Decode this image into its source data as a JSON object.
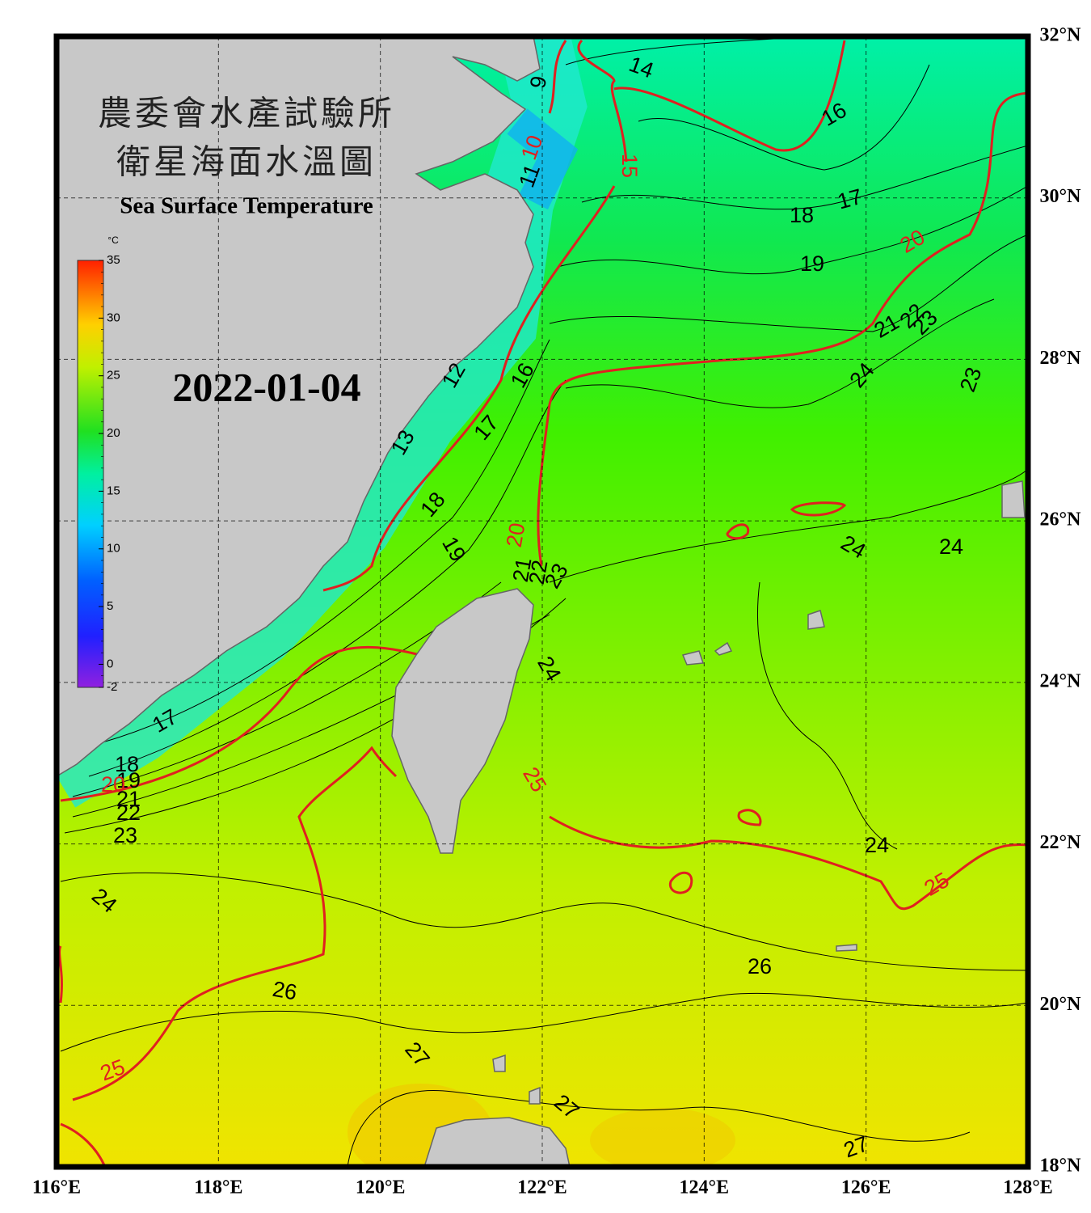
{
  "map": {
    "title_zh_1": "農委會水產試驗所",
    "title_zh_2": "衛星海面水溫圖",
    "title_en": "Sea Surface Temperature",
    "date": "2022-01-04",
    "colorbar": {
      "unit": "°C",
      "range": [
        -2,
        35
      ],
      "ticks": [
        35,
        30,
        25,
        20,
        15,
        10,
        5,
        0,
        -2
      ]
    },
    "lonlim": [
      116,
      128
    ],
    "latlim": [
      18,
      32
    ],
    "lon_ticks": [
      {
        "value": 116,
        "label": "116°E"
      },
      {
        "value": 118,
        "label": "118°E"
      },
      {
        "value": 120,
        "label": "120°E"
      },
      {
        "value": 122,
        "label": "122°E"
      },
      {
        "value": 124,
        "label": "124°E"
      },
      {
        "value": 126,
        "label": "126°E"
      },
      {
        "value": 128,
        "label": "128°E"
      }
    ],
    "lat_ticks": [
      {
        "value": 32,
        "label": "32°N"
      },
      {
        "value": 30,
        "label": "30°N"
      },
      {
        "value": 28,
        "label": "28°N"
      },
      {
        "value": 26,
        "label": "26°N"
      },
      {
        "value": 24,
        "label": "24°N"
      },
      {
        "value": 22,
        "label": "22°N"
      },
      {
        "value": 20,
        "label": "20°N"
      },
      {
        "value": 18,
        "label": "18°N"
      }
    ],
    "contour_labels": [
      14,
      16,
      9,
      10,
      11,
      15,
      17,
      18,
      20,
      19,
      21,
      22,
      23,
      24,
      23,
      16,
      12,
      17,
      13,
      18,
      20,
      19,
      21,
      22,
      23,
      24,
      24,
      24,
      17,
      18,
      19,
      20,
      21,
      22,
      23,
      25,
      24,
      25,
      24,
      26,
      26,
      25,
      27,
      27,
      27
    ]
  }
}
